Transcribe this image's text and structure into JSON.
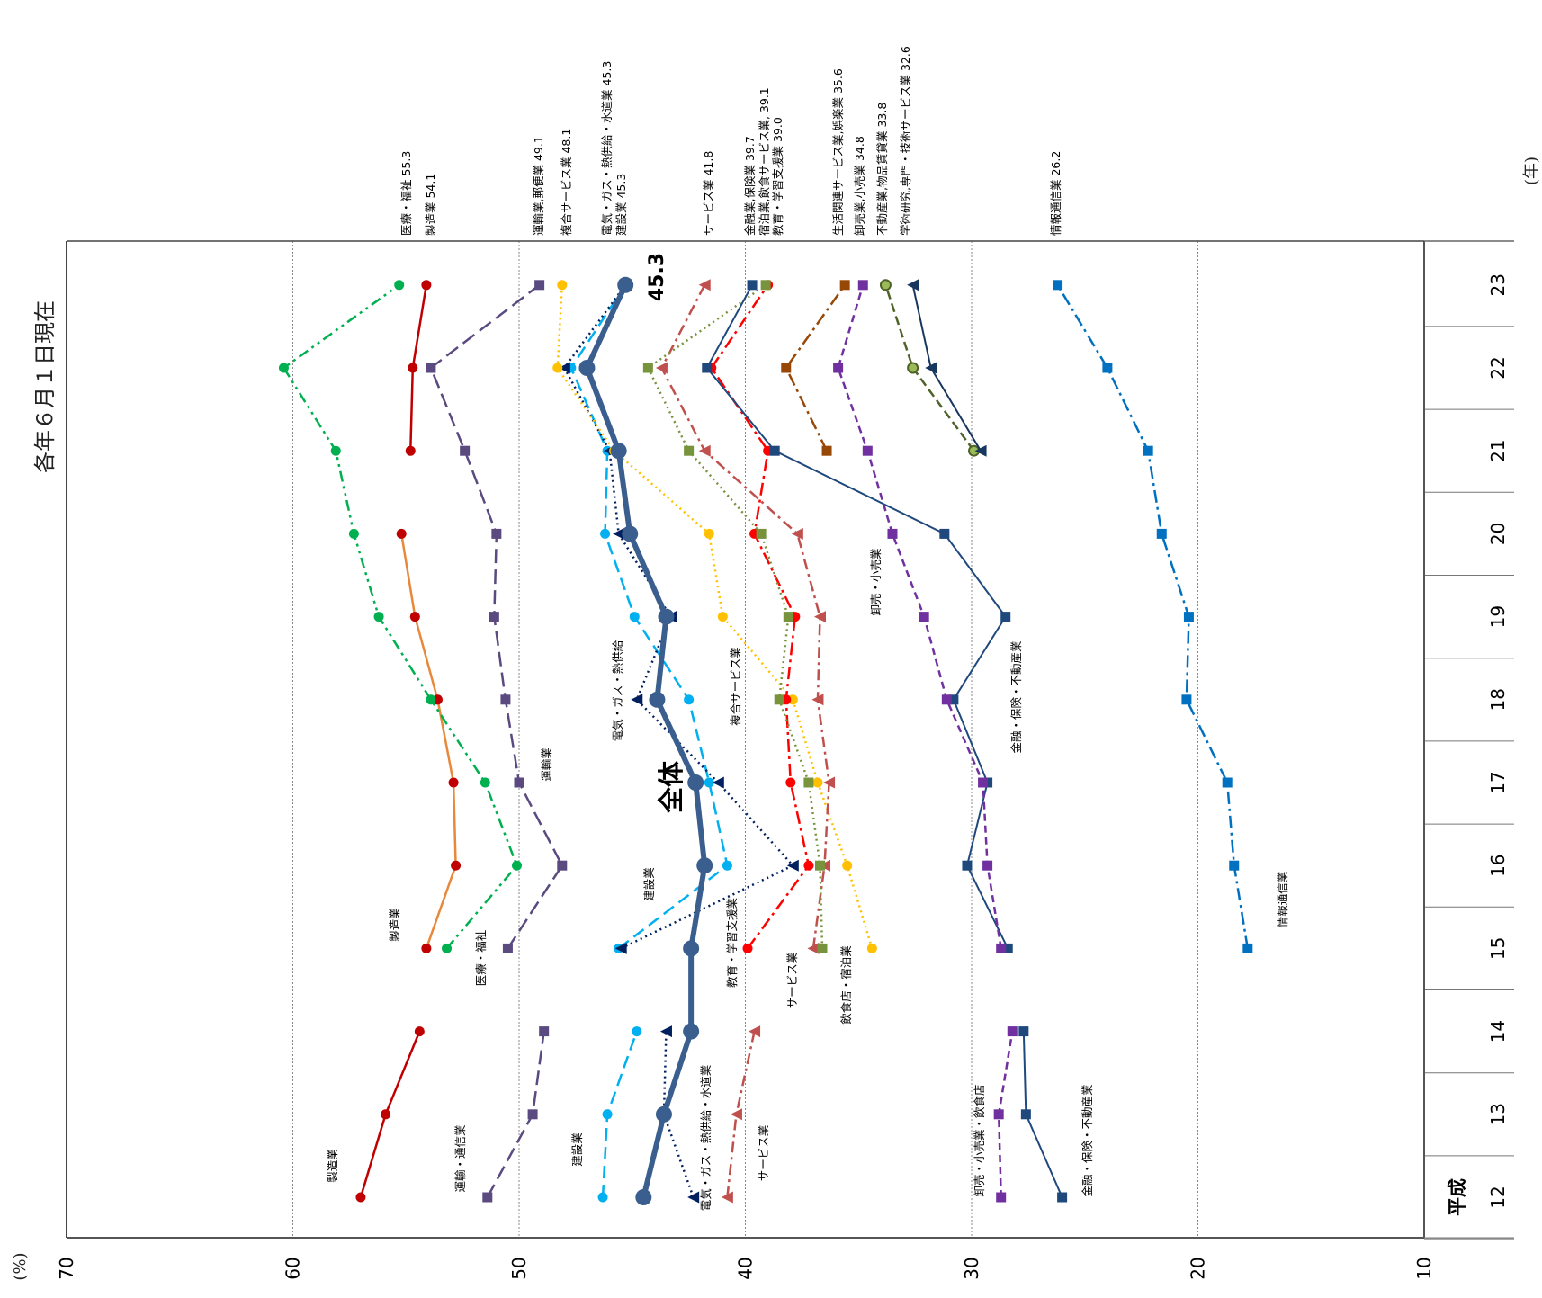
{
  "chart_data": {
    "type": "line",
    "orientation": "rotated-90-ccw",
    "title": "各年６月１日現在",
    "unit_label": "(%)",
    "year_unit_label": "(年)",
    "era_label": "平成",
    "value_axis": {
      "range": [
        10,
        70
      ],
      "ticks": [
        "70",
        "60",
        "50",
        "40",
        "30",
        "20",
        "10"
      ],
      "gridlines": [
        60,
        50,
        40,
        30,
        20
      ]
    },
    "categories": [
      "12",
      "13",
      "14",
      "15",
      "16",
      "17",
      "18",
      "19",
      "20",
      "21",
      "22",
      "23"
    ],
    "colors": {
      "total": "#3a5e8e",
      "manufacturing": "#c00000",
      "manufacturing_mid": "#e8883a",
      "medical": "#00b050",
      "transport": "#5a4a80",
      "construction": "#00b0f0",
      "utility": "#002060",
      "compound": "#ffc000",
      "service": "#c0504d",
      "education": "#ff0000",
      "hotel": "#77933c",
      "finance": "#1f497d",
      "wholesale": "#7030a0",
      "living": "#984806",
      "info": "#0070c0",
      "academic": "#17375e"
    },
    "series": [
      {
        "key": "total",
        "values": [
          44.5,
          43.6,
          42.4,
          42.4,
          41.8,
          42.2,
          43.9,
          43.5,
          45.1,
          45.6,
          47.0,
          45.3
        ]
      },
      {
        "key": "manufacturing",
        "values": [
          57.0,
          55.9,
          54.4,
          null,
          null,
          null,
          null,
          null,
          null,
          null,
          null,
          null
        ]
      },
      {
        "key": "transport",
        "values": [
          51.4,
          49.4,
          48.9,
          null,
          null,
          null,
          null,
          null,
          null,
          null,
          null,
          null
        ]
      },
      {
        "key": "construction",
        "values": [
          46.3,
          46.1,
          44.8,
          null,
          null,
          null,
          null,
          null,
          null,
          null,
          null,
          null
        ]
      },
      {
        "key": "utility",
        "values": [
          42.3,
          43.6,
          43.5,
          null,
          null,
          null,
          null,
          null,
          null,
          null,
          null,
          null
        ]
      },
      {
        "key": "service",
        "values": [
          40.8,
          40.4,
          39.6,
          null,
          null,
          null,
          null,
          null,
          null,
          null,
          null,
          null
        ]
      },
      {
        "key": "wholesale",
        "values": [
          28.7,
          28.8,
          28.2,
          null,
          null,
          null,
          null,
          null,
          null,
          null,
          null,
          null
        ]
      },
      {
        "key": "finance",
        "values": [
          26.0,
          27.6,
          27.7,
          null,
          null,
          null,
          null,
          null,
          null,
          null,
          null,
          null
        ]
      },
      {
        "key": "manufacturing_mid",
        "values": [
          null,
          null,
          null,
          54.1,
          52.8,
          52.9,
          53.6,
          54.6,
          55.2,
          null,
          null,
          null
        ]
      },
      {
        "key": "medical",
        "values": [
          null,
          null,
          null,
          53.2,
          50.1,
          51.5,
          53.9,
          56.2,
          57.3,
          58.1,
          60.4,
          55.3
        ]
      },
      {
        "key": "transport",
        "values": [
          null,
          null,
          null,
          50.5,
          48.1,
          50.0,
          50.6,
          51.1,
          51.0,
          52.4,
          53.9,
          49.1
        ]
      },
      {
        "key": "construction",
        "values": [
          null,
          null,
          null,
          45.6,
          40.8,
          41.6,
          42.5,
          44.9,
          46.2,
          46.1,
          47.7,
          45.3
        ]
      },
      {
        "key": "utility",
        "values": [
          null,
          null,
          null,
          45.5,
          37.9,
          41.2,
          44.8,
          43.3,
          45.6,
          46.0,
          48.0,
          45.3
        ]
      },
      {
        "key": "compound",
        "values": [
          null,
          null,
          null,
          34.4,
          35.5,
          36.8,
          37.9,
          41.0,
          41.6,
          45.8,
          48.3,
          48.1
        ]
      },
      {
        "key": "service",
        "values": [
          null,
          null,
          null,
          37.0,
          36.5,
          36.3,
          36.8,
          36.7,
          37.7,
          41.8,
          43.7,
          41.8
        ]
      },
      {
        "key": "education",
        "values": [
          null,
          null,
          null,
          39.9,
          37.2,
          38.0,
          38.2,
          37.8,
          39.6,
          39.0,
          41.5,
          39.0
        ]
      },
      {
        "key": "hotel",
        "values": [
          null,
          null,
          null,
          36.6,
          36.7,
          37.2,
          38.5,
          38.1,
          39.3,
          42.5,
          44.3,
          39.1
        ]
      },
      {
        "key": "finance",
        "values": [
          null,
          null,
          null,
          28.4,
          30.2,
          29.3,
          30.8,
          28.5,
          31.2,
          38.7,
          41.7,
          39.7
        ]
      },
      {
        "key": "wholesale",
        "values": [
          null,
          null,
          null,
          28.7,
          29.3,
          29.5,
          31.1,
          32.1,
          33.5,
          34.6,
          35.9,
          34.8
        ]
      },
      {
        "key": "info",
        "values": [
          null,
          null,
          null,
          17.8,
          18.4,
          18.7,
          20.5,
          20.4,
          21.6,
          22.2,
          24.0,
          26.2
        ]
      },
      {
        "key": "manufacturing",
        "values": [
          null,
          null,
          null,
          null,
          null,
          null,
          null,
          null,
          null,
          54.8,
          54.7,
          54.1
        ]
      },
      {
        "key": "living",
        "values": [
          null,
          null,
          null,
          null,
          null,
          null,
          null,
          null,
          null,
          36.4,
          38.2,
          35.6
        ]
      },
      {
        "key": "realestate",
        "values": [
          null,
          null,
          null,
          null,
          null,
          null,
          null,
          null,
          null,
          29.9,
          32.6,
          33.8
        ]
      },
      {
        "key": "academic",
        "values": [
          null,
          null,
          null,
          null,
          null,
          null,
          null,
          null,
          null,
          29.6,
          31.8,
          32.6
        ]
      }
    ],
    "annotations": {
      "total_label": "全体",
      "total_last": "45.3",
      "mid": [
        "製造業",
        "医療・福祉",
        "運輸業",
        "建設業",
        "電気・ガス・熱供給",
        "複合サービス業",
        "教育・学習支援業",
        "サービス業",
        "飲食店・宿泊業",
        "卸売・小売業",
        "金融・保険・不動産業",
        "情報通信業"
      ],
      "early": [
        "製造業",
        "運輸・通信業",
        "建設業",
        "電気・ガス・熱供給・水道業",
        "サービス業",
        "卸売・小売業・飲食店",
        "金融・保険・不動産業"
      ],
      "top": [
        {
          "text": "医療・福祉",
          "val": "55.3"
        },
        {
          "text": "製造業",
          "val": "54.1"
        },
        {
          "text": "運輸業,郵便業",
          "val": "49.1"
        },
        {
          "text": "複合サービス業",
          "val": "48.1"
        },
        {
          "text": "電気・ガス・熱供給・水道業",
          "val": "45.3"
        },
        {
          "text": "建設業",
          "val": "45.3"
        },
        {
          "text": "サービス業",
          "val": "41.8"
        },
        {
          "text": "金融業,保険業",
          "val": "39.7"
        },
        {
          "text": "宿泊業,飲食サービス業,",
          "val": "39.1"
        },
        {
          "text": "教育・学習支援業",
          "val": "39.0"
        },
        {
          "text": "生活関連サービス業,娯楽業",
          "val": "35.6"
        },
        {
          "text": "卸売業,小売業",
          "val": "34.8"
        },
        {
          "text": "不動産業,物品賃貸業",
          "val": "33.8"
        },
        {
          "text": "学術研究,専門・技術サービス業",
          "val": "32.6"
        },
        {
          "text": "情報通信業",
          "val": "26.2"
        }
      ]
    }
  }
}
